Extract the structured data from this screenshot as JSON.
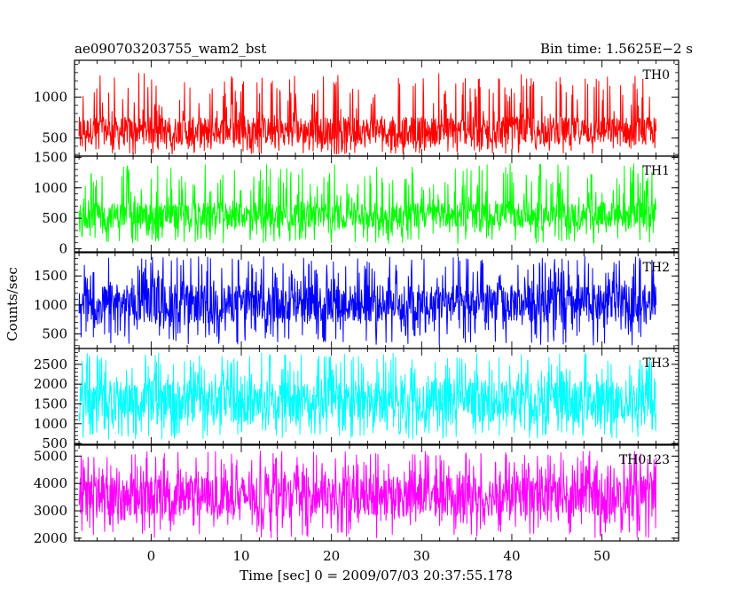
{
  "chart_data": {
    "type": "line",
    "title_left": "ae090703203755_wam2_bst",
    "title_right": "Bin time: 1.5625E−2 s",
    "xlabel": "Time [sec] 0 = 2009/07/03 20:37:55.178",
    "ylabel": "Counts/sec",
    "xlim": [
      -8.5,
      58.5
    ],
    "x_data_range": [
      -8,
      56
    ],
    "x_ticks": [
      0,
      10,
      20,
      30,
      40,
      50
    ],
    "x_tick_labels": [
      "0",
      "10",
      "20",
      "30",
      "40",
      "50"
    ],
    "grid": false,
    "panels": [
      {
        "name": "TH0",
        "color": "#ff0000",
        "ylim": [
          280,
          1450
        ],
        "ticks": [
          500,
          1000
        ],
        "tick_labels": [
          "500",
          "1000"
        ],
        "series": {
          "low": 300,
          "base_low": 420,
          "base_high": 760,
          "high": 1300
        }
      },
      {
        "name": "TH1",
        "color": "#00ff00",
        "ylim": [
          -50,
          1520
        ],
        "ticks": [
          0,
          500,
          1000,
          1500
        ],
        "tick_labels": [
          "0",
          "500",
          "1000",
          "1500"
        ],
        "series": {
          "low": 80,
          "base_low": 340,
          "base_high": 760,
          "high": 1400
        }
      },
      {
        "name": "TH2",
        "color": "#0000ff",
        "ylim": [
          250,
          1900
        ],
        "ticks": [
          500,
          1000,
          1500
        ],
        "tick_labels": [
          "500",
          "1000",
          "1500"
        ],
        "series": {
          "low": 300,
          "base_low": 700,
          "base_high": 1350,
          "high": 1850
        }
      },
      {
        "name": "TH3",
        "color": "#00ffff",
        "ylim": [
          480,
          2900
        ],
        "ticks": [
          500,
          1000,
          1500,
          2000,
          2500
        ],
        "tick_labels": [
          "500",
          "1000",
          "1500",
          "2000",
          "2500"
        ],
        "series": {
          "low": 600,
          "base_low": 1050,
          "base_high": 2100,
          "high": 2800
        }
      },
      {
        "name": "TH0123",
        "color": "#ff00ff",
        "ylim": [
          1900,
          5400
        ],
        "ticks": [
          2000,
          3000,
          4000,
          5000
        ],
        "tick_labels": [
          "2000",
          "3000",
          "4000",
          "5000"
        ],
        "series": {
          "low": 2000,
          "base_low": 2800,
          "base_high": 4300,
          "high": 5200
        }
      }
    ]
  }
}
